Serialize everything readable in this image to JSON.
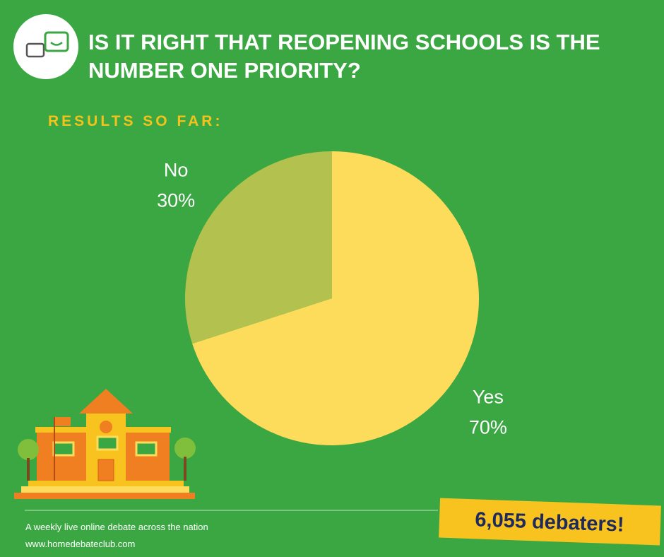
{
  "chart_data": {
    "type": "pie",
    "title": "IS IT RIGHT THAT REOPENING SCHOOLS IS THE NUMBER ONE PRIORITY?",
    "subtitle": "RESULTS SO FAR:",
    "categories": [
      "Yes",
      "No"
    ],
    "values": [
      70,
      30
    ],
    "value_labels": [
      "70%",
      "30%"
    ],
    "colors": [
      "#fddc5b",
      "#b3c24f"
    ]
  },
  "badge": "6,055 debaters!",
  "footer": {
    "tagline": "A weekly live online debate across the nation",
    "url": "www.homedebateclub.com"
  }
}
